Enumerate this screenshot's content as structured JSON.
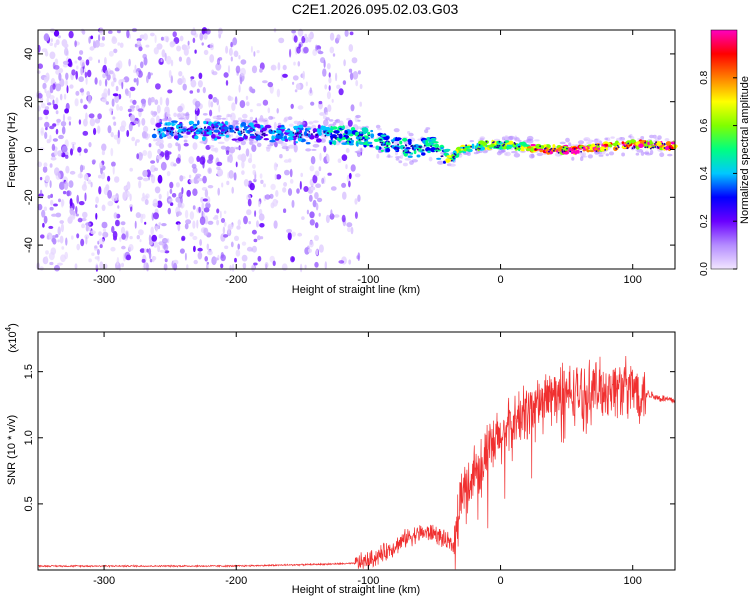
{
  "title": "C2E1.2026.095.02.03.G03",
  "chart_data": [
    {
      "type": "heatmap",
      "name": "spectrogram",
      "xlabel": "Height of straight line (km)",
      "ylabel": "Frequency (Hz)",
      "xlim": [
        -350,
        132
      ],
      "ylim": [
        -50,
        50
      ],
      "xticks": [
        -300,
        -200,
        -100,
        0,
        100
      ],
      "yticks": [
        -40,
        -20,
        0,
        20,
        40
      ],
      "colorbar": {
        "label": "Normalized spectral amplitude",
        "range": [
          0,
          1
        ],
        "ticks": [
          "0.0",
          "0.2",
          "0.4",
          "0.6",
          "0.8"
        ],
        "tick_values": [
          0.0,
          0.2,
          0.4,
          0.6,
          0.8
        ],
        "colors": [
          "#f2e6ff",
          "#b48cff",
          "#6a00ff",
          "#0000ff",
          "#00c8ff",
          "#00ff80",
          "#80ff00",
          "#ffff00",
          "#ff8000",
          "#ff0000",
          "#ff00c0"
        ]
      },
      "signal_track": {
        "x": [
          -262,
          -240,
          -220,
          -200,
          -180,
          -160,
          -140,
          -120,
          -100,
          -85,
          -72,
          -60,
          -52,
          -45,
          -38,
          -30,
          -20,
          -10,
          0,
          20,
          40,
          60,
          80,
          100,
          132
        ],
        "y": [
          9,
          8,
          8,
          7.5,
          7,
          6.5,
          6,
          6,
          5,
          2,
          0.5,
          0,
          3,
          -2,
          -4,
          0,
          1,
          2,
          2,
          1,
          0,
          0,
          1,
          2,
          1.5
        ]
      }
    },
    {
      "type": "line",
      "name": "snr",
      "xlabel": "Height of straight line (km)",
      "ylabel": "SNR (10 * v/v)",
      "scale_label": "(x10",
      "scale_exp": "4",
      "scale_close": ")",
      "xlim": [
        -350,
        132
      ],
      "ylim": [
        0,
        1.8
      ],
      "xticks": [
        -300,
        -200,
        -100,
        0,
        100
      ],
      "yticks": [
        0.5,
        1.0,
        1.5
      ],
      "ytick_labels": [
        "0.5",
        "1.0",
        "1.5"
      ],
      "series_color": "#f03030",
      "envelope": {
        "x": [
          -350,
          -200,
          -150,
          -110,
          -100,
          -90,
          -80,
          -70,
          -60,
          -50,
          -42,
          -35,
          -30,
          -25,
          -20,
          -10,
          0,
          10,
          20,
          30,
          40,
          50,
          60,
          70,
          80,
          90,
          100,
          110,
          120,
          132
        ],
        "y": [
          0.03,
          0.03,
          0.04,
          0.05,
          0.07,
          0.12,
          0.18,
          0.25,
          0.28,
          0.28,
          0.22,
          0.18,
          0.55,
          0.62,
          0.75,
          0.88,
          1.0,
          1.1,
          1.2,
          1.28,
          1.32,
          1.33,
          1.34,
          1.36,
          1.37,
          1.38,
          1.37,
          1.34,
          1.3,
          1.28
        ]
      }
    }
  ]
}
